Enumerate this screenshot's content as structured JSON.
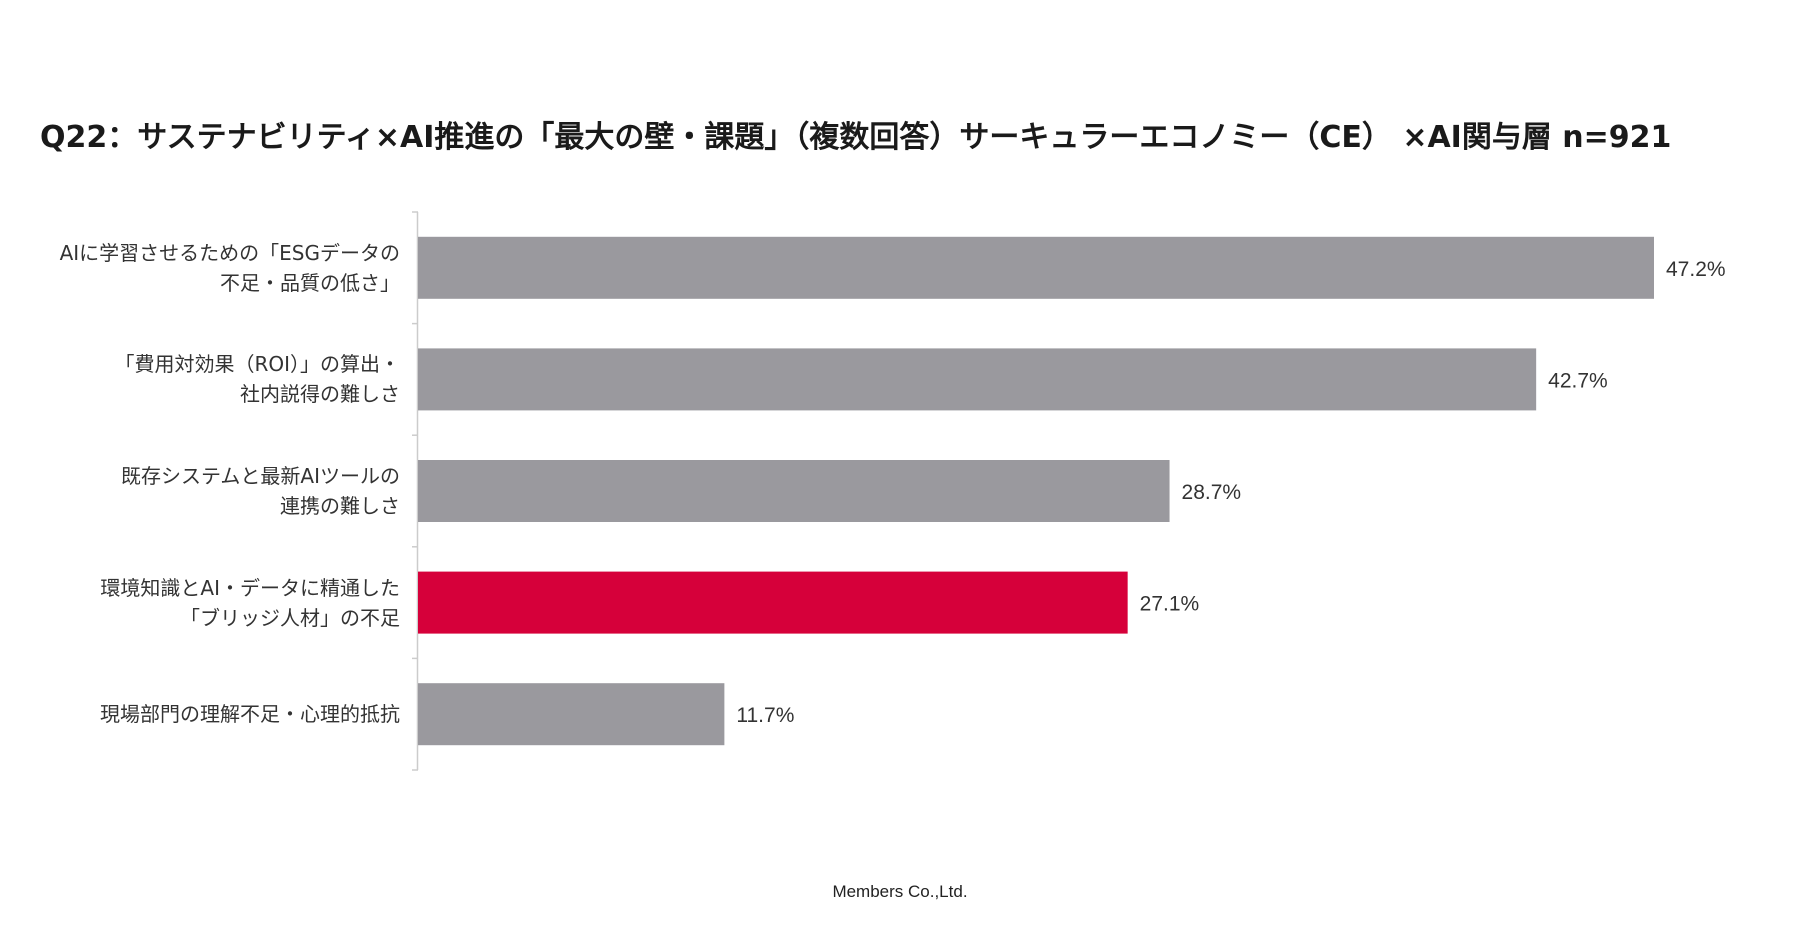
{
  "title": "Q22：サステナビリティ×AI推進の「最大の壁・課題」（複数回答）サーキュラーエコノミー（CE） ×AI関与層 n=921",
  "footer": "Members Co.,Ltd.",
  "colors": {
    "bar_default": "#9a999e",
    "bar_highlight": "#d6003a",
    "axis": "#cccccc"
  },
  "chart_data": {
    "type": "bar",
    "orientation": "horizontal",
    "title": "Q22：サステナビリティ×AI推進の「最大の壁・課題」（複数回答）サーキュラーエコノミー（CE） ×AI関与層 n=921",
    "categories": [
      "AIに学習させるための「ESGデータの\n不足・品質の低さ」",
      "「費用対効果（ROI）」の算出・\n社内説得の難しさ",
      "既存システムと最新AIツールの\n連携の難しさ",
      "環境知識とAI・データに精通した\n「ブリッジ人材」の不足",
      "現場部門の理解不足・心理的抵抗"
    ],
    "values": [
      47.2,
      42.7,
      28.7,
      27.1,
      11.7
    ],
    "value_labels": [
      "47.2%",
      "42.7%",
      "28.7%",
      "27.1%",
      "11.7%"
    ],
    "highlight_index": 3,
    "xlim": [
      0,
      50
    ],
    "grid": false,
    "legend": "none"
  }
}
